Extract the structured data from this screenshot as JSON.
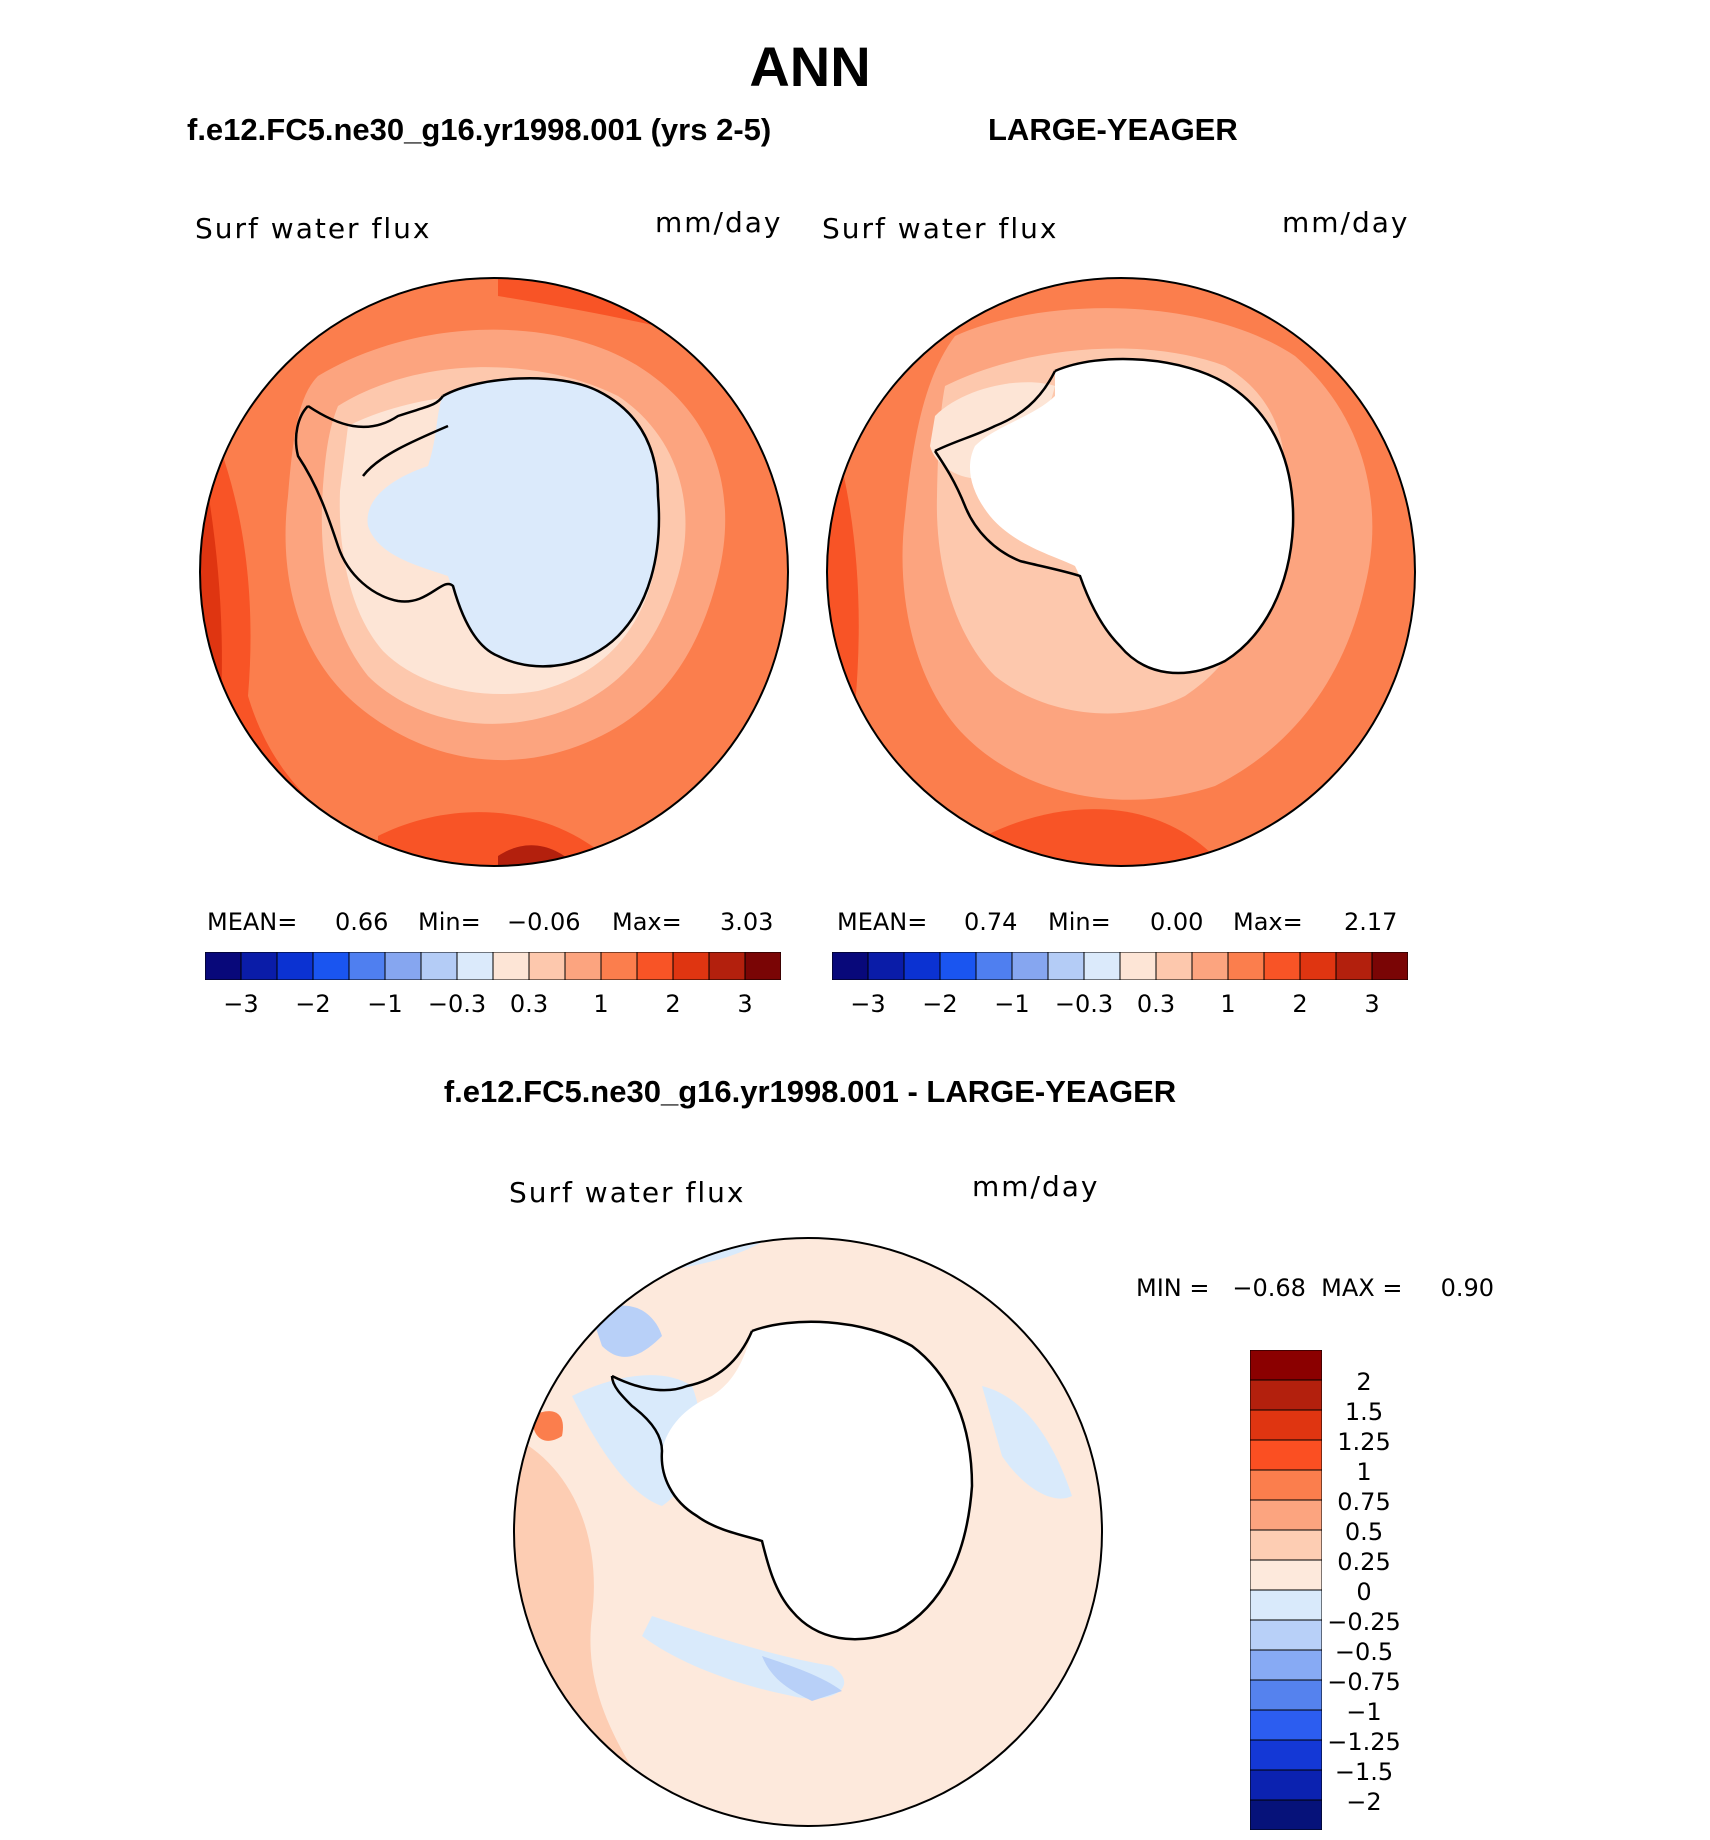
{
  "season_title": "ANN",
  "panels": [
    {
      "case_title": "f.e12.FC5.ne30_g16.yr1998.001 (yrs 2-5)",
      "variable_label": "Surf water flux",
      "units": "mm/day",
      "stats": {
        "mean_label": "MEAN=",
        "mean": "0.66",
        "min_label": "Min=",
        "min": "−0.06",
        "max_label": "Max=",
        "max": "3.03"
      }
    },
    {
      "case_title": "LARGE-YEAGER",
      "variable_label": "Surf water flux",
      "units": "mm/day",
      "stats": {
        "mean_label": "MEAN=",
        "mean": "0.74",
        "min_label": "Min=",
        "min": "0.00",
        "max_label": "Max=",
        "max": "2.17"
      }
    }
  ],
  "abs_colorbar": {
    "colors": [
      "#08087a",
      "#0a1ca8",
      "#0b32d2",
      "#1a55f0",
      "#4f7ff0",
      "#86a6f0",
      "#b4ccf6",
      "#dbeafb",
      "#fde5d6",
      "#fdc8ad",
      "#fca47f",
      "#fb7e4d",
      "#f85426",
      "#df3511",
      "#b3200d",
      "#7a0505"
    ],
    "tick_labels": [
      "−3",
      "−2",
      "−1",
      "−0.3",
      "0.3",
      "1",
      "2",
      "3"
    ]
  },
  "diff_panel": {
    "title": "f.e12.FC5.ne30_g16.yr1998.001 - LARGE-YEAGER",
    "variable_label": "Surf water flux",
    "units": "mm/day",
    "stats_text": "MIN =   −0.68  MAX =     0.90",
    "colorbar_colors_top_to_bottom": [
      "#8b0000",
      "#b3200d",
      "#df3511",
      "#fb4f22",
      "#fb7e4d",
      "#fca47f",
      "#fdcdb3",
      "#fde9dc",
      "#d9eafb",
      "#b8d0f8",
      "#87aaf4",
      "#5582ee",
      "#2c5df0",
      "#1438d6",
      "#0b22b0",
      "#06127a"
    ],
    "colorbar_labels": [
      "2",
      "1.5",
      "1.25",
      "1",
      "0.75",
      "0.5",
      "0.25",
      "0",
      "−0.25",
      "−0.5",
      "−0.75",
      "−1",
      "−1.25",
      "−1.5",
      "−2"
    ]
  }
}
